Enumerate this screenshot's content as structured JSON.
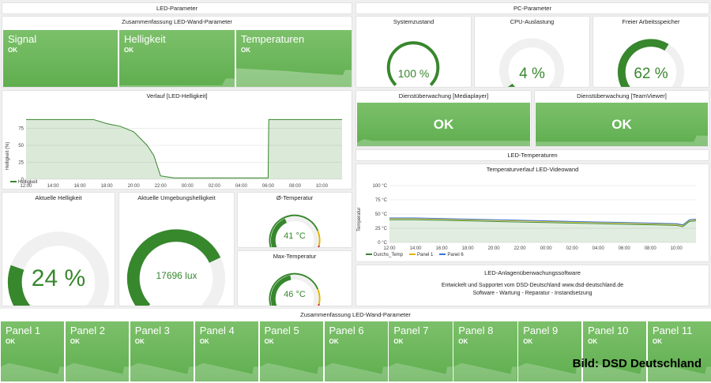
{
  "led_header": {
    "title": "LED-Parameter"
  },
  "pc_header": {
    "title": "PC-Parameter"
  },
  "summary_top": {
    "title": "Zusammenfassung LED-Wand-Parameter",
    "tiles": [
      {
        "name": "Signal",
        "value": "OK"
      },
      {
        "name": "Helligkeit",
        "value": "OK"
      },
      {
        "name": "Temperaturen",
        "value": "OK"
      }
    ]
  },
  "system": {
    "title": "Systemzustand",
    "value": "100 %",
    "level": 1.0
  },
  "cpu": {
    "title": "CPU-Auslastung",
    "value": "4 %",
    "level": 0.04
  },
  "memory": {
    "title": "Freier Arbeitsspeicher",
    "value": "62 %",
    "level": 0.62
  },
  "brightness_chart": {
    "title": "Verlauf [LED-Helligkeit]",
    "ylabel": "Helligkeit (%)",
    "legend": "Helligkeit",
    "x_ticks": [
      "12:00",
      "14:00",
      "16:00",
      "18:00",
      "20:00",
      "22:00",
      "00:00",
      "02:00",
      "04:00",
      "06:00",
      "08:00",
      "10:00"
    ],
    "y_ticks": [
      "0",
      "25",
      "50",
      "75"
    ],
    "color": "#37872d"
  },
  "chart_data": [
    {
      "type": "area",
      "title": "Verlauf [LED-Helligkeit]",
      "ylabel": "Helligkeit (%)",
      "xlabel": "",
      "x_hours": [
        12,
        13,
        14,
        15,
        16,
        17,
        18,
        18.5,
        19,
        20,
        21,
        21.5,
        22,
        23,
        0,
        2,
        4,
        6,
        6.05,
        8,
        10,
        11.5
      ],
      "values": [
        88,
        88,
        88,
        88,
        88,
        88,
        82,
        80,
        78,
        70,
        50,
        35,
        5,
        2,
        2,
        2,
        2,
        2,
        88,
        88,
        88,
        88
      ],
      "ylim": [
        0,
        100
      ],
      "series": [
        {
          "name": "Helligkeit"
        }
      ]
    },
    {
      "type": "line",
      "title": "Temperaturverlauf LED-Videowand",
      "ylabel": "Temperatur",
      "x_hours": [
        12,
        14,
        16,
        18,
        20,
        22,
        0,
        2,
        4,
        6,
        8,
        10,
        10.5,
        11,
        11.5
      ],
      "ylim": [
        0,
        100
      ],
      "series": [
        {
          "name": "Durchs_Temp",
          "values": [
            40,
            40,
            39,
            38,
            37,
            36,
            35,
            34,
            33,
            32,
            31,
            30,
            28,
            37,
            38
          ]
        },
        {
          "name": "Panel 1",
          "values": [
            42,
            42,
            41,
            40,
            39,
            38,
            37,
            36,
            35,
            34,
            33,
            32,
            30,
            39,
            40
          ]
        },
        {
          "name": "Panel 6",
          "values": [
            43,
            43,
            42,
            41,
            40,
            39,
            38,
            37,
            36,
            35,
            34,
            33,
            31,
            40,
            41
          ]
        }
      ]
    }
  ],
  "current_brightness": {
    "title": "Aktuelle Helligkeit",
    "value": "24 %",
    "level": 0.24
  },
  "ambient": {
    "title": "Aktuelle Umgebungshelligkeit",
    "value": "17696 lux",
    "level": 0.74
  },
  "avg_temp": {
    "title": "Ø-Temperatur",
    "value": "41 °C",
    "level": 0.41
  },
  "max_temp": {
    "title": "Max-Temperatur",
    "value": "46 °C",
    "level": 0.46
  },
  "mediaplayer": {
    "title": "Dienstüberwachung [Mediaplayer]",
    "value": "OK"
  },
  "teamviewer": {
    "title": "Dienstüberwachung [TeamViewer]",
    "value": "OK"
  },
  "led_temp_header": {
    "title": "LED-Temperaturen"
  },
  "temp_chart": {
    "title": "Temperaturverlauf LED-Videowand",
    "ylabel": "Temperatur",
    "y_ticks": [
      "100 °C",
      "75 °C",
      "50 °C",
      "25 °C",
      "0 °C"
    ],
    "x_ticks": [
      "12:00",
      "14:00",
      "16:00",
      "18:00",
      "20:00",
      "22:00",
      "00:00",
      "02:00",
      "04:00",
      "06:00",
      "08:00",
      "10:00"
    ],
    "legend": [
      {
        "name": "Durchs_Temp",
        "color": "#37872d"
      },
      {
        "name": "Panel 1",
        "color": "#e0b400"
      },
      {
        "name": "Panel 6",
        "color": "#3274d9"
      }
    ]
  },
  "software": {
    "title": "LED-Anlagenüberwachungssoftware",
    "line1": "Entwickelt und Supportet vom DSD-Deutschland www.dsd-deutschland.de",
    "line2": "Software - Wartung - Reparatur - Instandsetzung"
  },
  "summary_bottom": {
    "title": "Zusammenfassung LED-Wand-Parameter",
    "panels": [
      {
        "name": "Panel 1",
        "value": "OK"
      },
      {
        "name": "Panel 2",
        "value": "OK"
      },
      {
        "name": "Panel 3",
        "value": "OK"
      },
      {
        "name": "Panel 4",
        "value": "OK"
      },
      {
        "name": "Panel 5",
        "value": "OK"
      },
      {
        "name": "Panel 6",
        "value": "OK"
      },
      {
        "name": "Panel 7",
        "value": "OK"
      },
      {
        "name": "Panel 8",
        "value": "OK"
      },
      {
        "name": "Panel 9",
        "value": "OK"
      },
      {
        "name": "Panel 10",
        "value": "OK"
      },
      {
        "name": "Panel 11",
        "value": "OK"
      }
    ]
  },
  "credit": "Bild: DSD Deutschland",
  "colors": {
    "ok_green": "#5fae4f",
    "gauge_green": "#37872d",
    "gauge_track": "#f0f0f0",
    "warn_yellow": "#e0b400",
    "crit_red": "#c4162a"
  }
}
